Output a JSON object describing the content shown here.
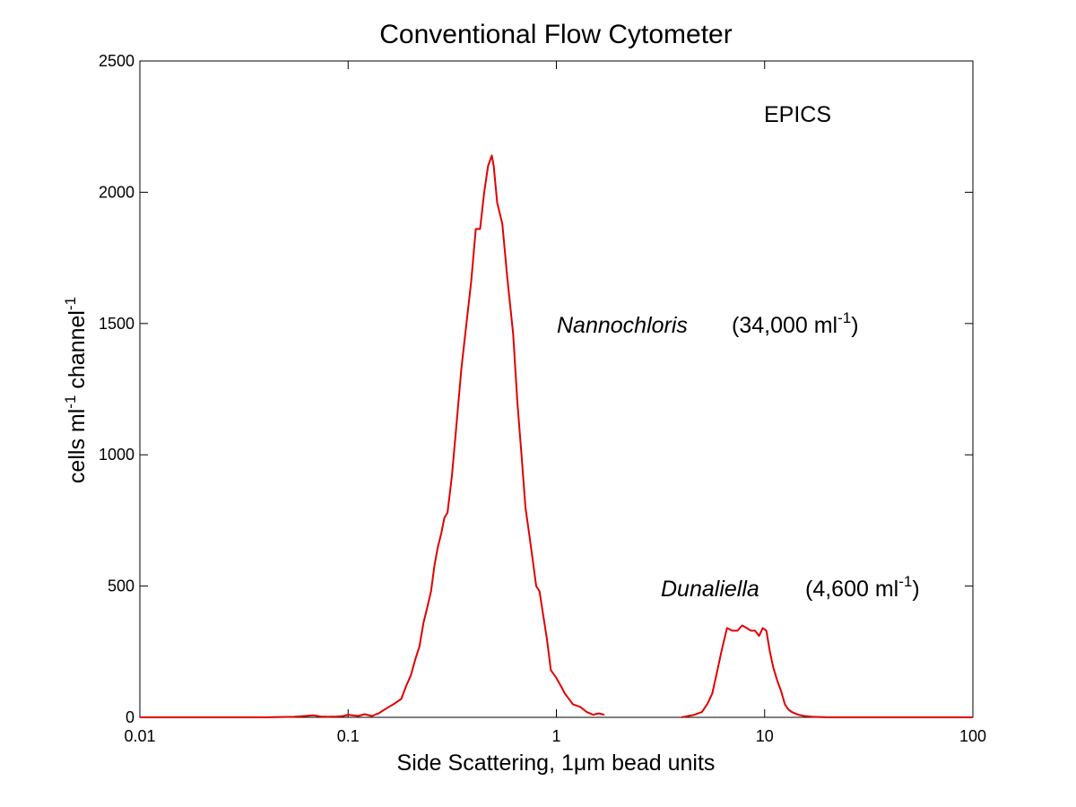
{
  "chart_data": {
    "type": "line",
    "title": "Conventional Flow Cytometer",
    "xlabel": {
      "main": "Side Scattering, 1",
      "mu": "μ",
      "rest": "m bead units"
    },
    "ylabel": {
      "a": "cells ml",
      "a_sup": "-1",
      "b": " channel",
      "b_sup": "-1"
    },
    "xscale": "log",
    "xlim": [
      0.01,
      100
    ],
    "ylim": [
      0,
      2500
    ],
    "xticks": [
      0.01,
      0.1,
      1,
      10,
      100
    ],
    "xtick_labels": [
      "0.01",
      "0.1",
      "1",
      "10",
      "100"
    ],
    "yticks": [
      0,
      500,
      1000,
      1500,
      2000,
      2500
    ],
    "ytick_labels": [
      "0",
      "500",
      "1000",
      "1500",
      "2000",
      "2500"
    ],
    "grid": false,
    "line_color": "#e00000",
    "annotations": {
      "epics": "EPICS",
      "nanno_name": "Nannochloris",
      "nanno_count": "(34,000 ml",
      "nanno_sup": "-1",
      "nanno_close": ")",
      "duna_name": "Dunaliella",
      "duna_count": "(4,600 ml",
      "duna_sup": "-1",
      "duna_close": ")"
    },
    "series": [
      {
        "x": [
          0.01,
          0.02,
          0.04,
          0.055,
          0.062,
          0.068,
          0.074,
          0.08,
          0.088,
          0.095,
          0.1,
          0.105,
          0.112,
          0.12,
          0.13,
          0.14,
          0.15,
          0.165,
          0.18,
          0.19,
          0.2,
          0.21,
          0.22,
          0.23,
          0.24,
          0.25,
          0.26,
          0.27,
          0.28,
          0.29,
          0.3,
          0.315,
          0.33,
          0.35,
          0.37,
          0.39,
          0.41,
          0.43,
          0.45,
          0.47,
          0.49,
          0.5,
          0.52,
          0.55,
          0.58,
          0.62,
          0.65,
          0.68,
          0.71,
          0.74,
          0.77,
          0.8,
          0.83,
          0.86,
          0.9,
          0.94,
          1.0,
          1.05,
          1.1,
          1.2,
          1.3,
          1.4,
          1.5,
          1.6,
          1.7
        ],
        "y": [
          0,
          0,
          0,
          2,
          5,
          8,
          3,
          2,
          3,
          5,
          10,
          8,
          5,
          12,
          5,
          15,
          30,
          50,
          70,
          120,
          160,
          220,
          270,
          360,
          420,
          480,
          580,
          650,
          700,
          760,
          780,
          920,
          1100,
          1330,
          1500,
          1660,
          1860,
          1860,
          2000,
          2100,
          2140,
          2100,
          1960,
          1880,
          1680,
          1460,
          1200,
          1000,
          800,
          700,
          600,
          500,
          480,
          400,
          300,
          180,
          150,
          120,
          90,
          50,
          40,
          20,
          10,
          15,
          10
        ]
      },
      {
        "x": [
          4.0,
          4.3,
          4.6,
          5.0,
          5.3,
          5.6,
          5.9,
          6.2,
          6.6,
          7.0,
          7.4,
          7.8,
          8.2,
          8.6,
          9.0,
          9.4,
          9.8,
          10.2,
          10.6,
          11.0,
          11.5,
          12.0,
          12.5,
          13.0,
          13.5,
          14.5,
          15.5,
          17.0,
          20.0,
          30.0,
          50.0,
          100.0
        ],
        "y": [
          0,
          5,
          10,
          20,
          50,
          90,
          170,
          250,
          340,
          330,
          330,
          350,
          340,
          330,
          330,
          310,
          340,
          330,
          250,
          190,
          140,
          100,
          50,
          30,
          20,
          10,
          5,
          2,
          0,
          0,
          0,
          0
        ]
      }
    ]
  }
}
